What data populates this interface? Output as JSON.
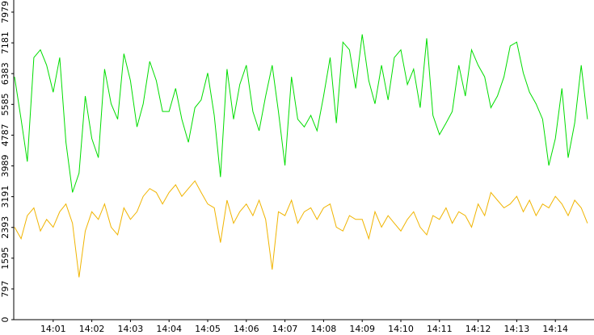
{
  "chart_data": {
    "type": "line",
    "x": [
      0,
      0.17,
      0.33,
      0.5,
      0.67,
      0.83,
      1,
      1.17,
      1.33,
      1.5,
      1.67,
      1.83,
      2,
      2.17,
      2.33,
      2.5,
      2.67,
      2.83,
      3,
      3.17,
      3.33,
      3.5,
      3.67,
      3.83,
      4,
      4.17,
      4.33,
      4.5,
      4.67,
      4.83,
      5,
      5.17,
      5.33,
      5.5,
      5.67,
      5.83,
      6,
      6.17,
      6.33,
      6.5,
      6.67,
      6.83,
      7,
      7.17,
      7.33,
      7.5,
      7.67,
      7.83,
      8,
      8.17,
      8.33,
      8.5,
      8.67,
      8.83,
      9,
      9.17,
      9.33,
      9.5,
      9.67,
      9.83,
      10,
      10.17,
      10.33,
      10.5,
      10.67,
      10.83,
      11,
      11.17,
      11.33,
      11.5,
      11.67,
      11.83,
      12,
      12.17,
      12.33,
      12.5,
      12.67,
      12.83,
      13,
      13.17,
      13.33,
      13.5,
      13.67,
      13.83,
      14,
      14.17,
      14.33,
      14.5,
      14.67,
      14.83
    ],
    "series": [
      {
        "color": "#00dd00",
        "values": [
          6300,
          5200,
          4100,
          6800,
          7000,
          6600,
          5900,
          6800,
          4600,
          3300,
          3800,
          5800,
          4700,
          4200,
          6500,
          5600,
          5200,
          6900,
          6200,
          5000,
          5600,
          6700,
          6200,
          5400,
          5400,
          6000,
          5200,
          4600,
          5500,
          5700,
          6400,
          5300,
          3700,
          6500,
          5200,
          6100,
          6600,
          5400,
          4900,
          5800,
          6600,
          5400,
          4000,
          6300,
          5200,
          5000,
          5300,
          4900,
          5800,
          6800,
          5100,
          7200,
          7000,
          6000,
          7400,
          6200,
          5600,
          6600,
          5700,
          6800,
          7000,
          6100,
          6500,
          5500,
          7300,
          5300,
          4800,
          5100,
          5400,
          6600,
          5800,
          7000,
          6600,
          6300,
          5500,
          5800,
          6300,
          7100,
          7200,
          6400,
          5900,
          5600,
          5200,
          4000,
          4700,
          6000,
          4200,
          5100,
          6600,
          5200
        ]
      },
      {
        "color": "#f0b400",
        "values": [
          2400,
          2100,
          2700,
          2900,
          2300,
          2600,
          2400,
          2800,
          3000,
          2500,
          1100,
          2300,
          2800,
          2600,
          3000,
          2400,
          2200,
          2900,
          2600,
          2800,
          3200,
          3400,
          3300,
          3000,
          3300,
          3500,
          3200,
          3400,
          3600,
          3300,
          3000,
          2900,
          2000,
          3100,
          2500,
          2800,
          3000,
          2700,
          3100,
          2600,
          1300,
          2800,
          2700,
          3100,
          2500,
          2800,
          2900,
          2600,
          2900,
          3000,
          2400,
          2300,
          2700,
          2600,
          2600,
          2100,
          2800,
          2400,
          2700,
          2500,
          2300,
          2600,
          2800,
          2400,
          2200,
          2700,
          2600,
          2900,
          2500,
          2800,
          2700,
          2400,
          3000,
          2700,
          3300,
          3100,
          2900,
          3000,
          3200,
          2800,
          3100,
          2700,
          3000,
          2900,
          3200,
          3000,
          2700,
          3100,
          2900,
          2500
        ]
      }
    ],
    "xlim": [
      0,
      15
    ],
    "xticks": [
      {
        "value": 1,
        "label": "14:01"
      },
      {
        "value": 2,
        "label": "14:02"
      },
      {
        "value": 3,
        "label": "14:03"
      },
      {
        "value": 4,
        "label": "14:04"
      },
      {
        "value": 5,
        "label": "14:05"
      },
      {
        "value": 6,
        "label": "14:06"
      },
      {
        "value": 7,
        "label": "14:07"
      },
      {
        "value": 8,
        "label": "14:08"
      },
      {
        "value": 9,
        "label": "14:09"
      },
      {
        "value": 10,
        "label": "14:10"
      },
      {
        "value": 11,
        "label": "14:11"
      },
      {
        "value": 12,
        "label": "14:12"
      },
      {
        "value": 13,
        "label": "14:13"
      },
      {
        "value": 14,
        "label": "14:14"
      }
    ],
    "ylim": [
      0,
      7979
    ],
    "yticks": [
      0,
      797,
      1595,
      2393,
      3191,
      3989,
      4787,
      5585,
      6383,
      7181,
      7979
    ]
  }
}
